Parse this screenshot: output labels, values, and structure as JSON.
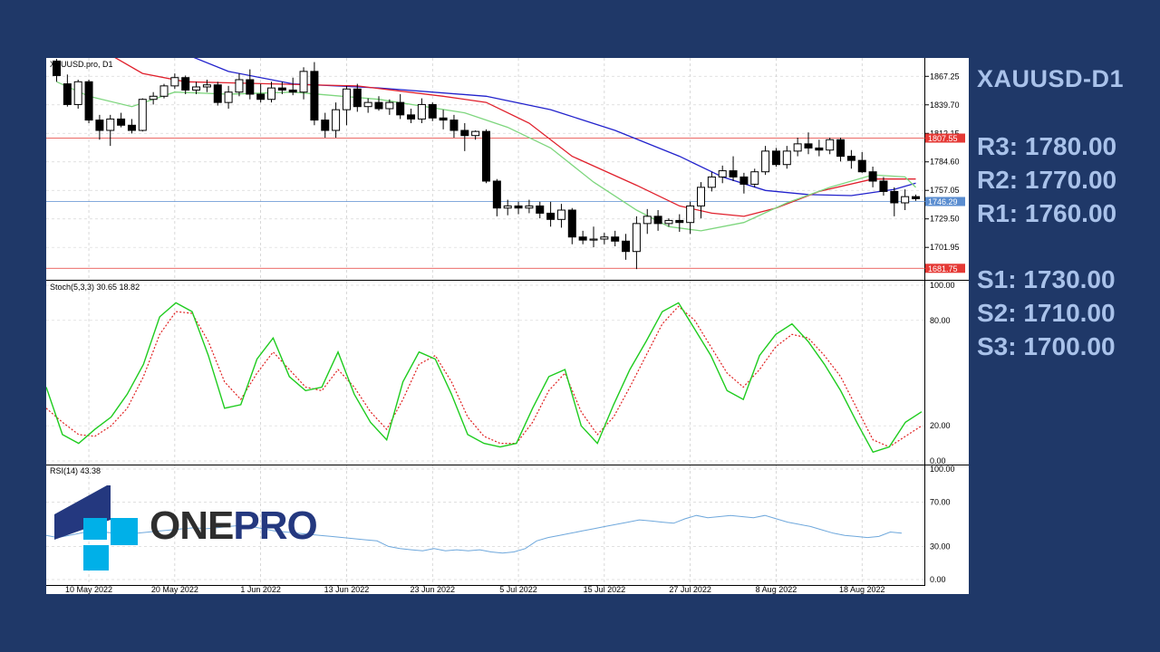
{
  "chart_data": {
    "type": "candlestick",
    "symbol": "XAUUSD.pro, D1",
    "price_axis_ticks": [
      "1867.25",
      "1839.70",
      "1812.15",
      "1784.60",
      "1757.05",
      "1729.50",
      "1701.95"
    ],
    "price_range": [
      1675,
      1885
    ],
    "horizontal_lines": [
      {
        "value": 1807.55,
        "label": "1807.55",
        "color": "#e53935"
      },
      {
        "value": 1746.29,
        "label": "1746.29",
        "color": "#5a8dd0"
      },
      {
        "value": 1681.75,
        "label": "1681.75",
        "color": "#e53935"
      }
    ],
    "x_labels": [
      "10 May 2022",
      "20 May 2022",
      "1 Jun 2022",
      "13 Jun 2022",
      "23 Jun 2022",
      "5 Jul 2022",
      "15 Jul 2022",
      "27 Jul 2022",
      "8 Aug 2022",
      "18 Aug 2022"
    ],
    "x_label_bar_index": [
      3,
      11,
      19,
      27,
      35,
      43,
      51,
      59,
      67,
      75
    ],
    "candles": [
      [
        1882,
        1884,
        1862,
        1868
      ],
      [
        1860,
        1869,
        1838,
        1840
      ],
      [
        1840,
        1864,
        1836,
        1862
      ],
      [
        1862,
        1864,
        1822,
        1825
      ],
      [
        1825,
        1830,
        1806,
        1815
      ],
      [
        1815,
        1830,
        1800,
        1826
      ],
      [
        1826,
        1832,
        1818,
        1820
      ],
      [
        1820,
        1826,
        1812,
        1815
      ],
      [
        1815,
        1846,
        1814,
        1845
      ],
      [
        1845,
        1852,
        1840,
        1848
      ],
      [
        1848,
        1860,
        1846,
        1858
      ],
      [
        1858,
        1870,
        1855,
        1866
      ],
      [
        1866,
        1868,
        1850,
        1854
      ],
      [
        1854,
        1862,
        1850,
        1857
      ],
      [
        1857,
        1864,
        1852,
        1859
      ],
      [
        1859,
        1862,
        1839,
        1842
      ],
      [
        1842,
        1858,
        1836,
        1852
      ],
      [
        1852,
        1870,
        1848,
        1864
      ],
      [
        1864,
        1874,
        1845,
        1850
      ],
      [
        1850,
        1860,
        1842,
        1845
      ],
      [
        1845,
        1862,
        1842,
        1856
      ],
      [
        1856,
        1862,
        1850,
        1854
      ],
      [
        1854,
        1866,
        1849,
        1852
      ],
      [
        1852,
        1876,
        1845,
        1872
      ],
      [
        1872,
        1881,
        1820,
        1825
      ],
      [
        1825,
        1832,
        1808,
        1815
      ],
      [
        1815,
        1842,
        1808,
        1835
      ],
      [
        1835,
        1858,
        1820,
        1855
      ],
      [
        1855,
        1860,
        1833,
        1838
      ],
      [
        1838,
        1846,
        1832,
        1842
      ],
      [
        1842,
        1848,
        1834,
        1836
      ],
      [
        1836,
        1845,
        1830,
        1842
      ],
      [
        1842,
        1850,
        1826,
        1830
      ],
      [
        1830,
        1836,
        1822,
        1826
      ],
      [
        1826,
        1846,
        1822,
        1840
      ],
      [
        1840,
        1842,
        1824,
        1827
      ],
      [
        1827,
        1835,
        1816,
        1825
      ],
      [
        1825,
        1830,
        1808,
        1815
      ],
      [
        1815,
        1822,
        1795,
        1810
      ],
      [
        1810,
        1815,
        1806,
        1814
      ],
      [
        1814,
        1816,
        1764,
        1766
      ],
      [
        1766,
        1768,
        1732,
        1740
      ],
      [
        1740,
        1748,
        1733,
        1742
      ],
      [
        1742,
        1746,
        1734,
        1740
      ],
      [
        1740,
        1748,
        1735,
        1742
      ],
      [
        1742,
        1746,
        1730,
        1735
      ],
      [
        1735,
        1746,
        1722,
        1729
      ],
      [
        1729,
        1744,
        1721,
        1738
      ],
      [
        1738,
        1740,
        1705,
        1712
      ],
      [
        1712,
        1718,
        1705,
        1709
      ],
      [
        1709,
        1722,
        1702,
        1710
      ],
      [
        1710,
        1716,
        1705,
        1712
      ],
      [
        1712,
        1718,
        1703,
        1708
      ],
      [
        1708,
        1715,
        1690,
        1698
      ],
      [
        1698,
        1732,
        1681,
        1725
      ],
      [
        1725,
        1739,
        1715,
        1732
      ],
      [
        1732,
        1738,
        1718,
        1725
      ],
      [
        1725,
        1730,
        1722,
        1728
      ],
      [
        1728,
        1734,
        1717,
        1726
      ],
      [
        1726,
        1746,
        1715,
        1742
      ],
      [
        1742,
        1765,
        1730,
        1760
      ],
      [
        1760,
        1775,
        1756,
        1770
      ],
      [
        1770,
        1781,
        1764,
        1776
      ],
      [
        1776,
        1790,
        1766,
        1770
      ],
      [
        1770,
        1774,
        1754,
        1763
      ],
      [
        1763,
        1778,
        1760,
        1775
      ],
      [
        1775,
        1800,
        1772,
        1795
      ],
      [
        1795,
        1798,
        1780,
        1782
      ],
      [
        1782,
        1800,
        1778,
        1795
      ],
      [
        1795,
        1808,
        1790,
        1802
      ],
      [
        1802,
        1813,
        1792,
        1798
      ],
      [
        1798,
        1806,
        1790,
        1796
      ],
      [
        1796,
        1808,
        1792,
        1806
      ],
      [
        1806,
        1808,
        1785,
        1790
      ],
      [
        1790,
        1796,
        1778,
        1786
      ],
      [
        1786,
        1794,
        1774,
        1775
      ],
      [
        1775,
        1780,
        1760,
        1766
      ],
      [
        1766,
        1770,
        1752,
        1756
      ],
      [
        1756,
        1760,
        1732,
        1745
      ],
      [
        1745,
        1758,
        1738,
        1751
      ],
      [
        1751,
        1753,
        1747,
        1749
      ]
    ],
    "moving_averages": [
      {
        "color": "#22c",
        "points": [
          [
            11,
            1893
          ],
          [
            16,
            1872
          ],
          [
            22,
            1860
          ],
          [
            30,
            1856
          ],
          [
            40,
            1848
          ],
          [
            46,
            1835
          ],
          [
            52,
            1815
          ],
          [
            58,
            1790
          ],
          [
            62,
            1770
          ],
          [
            66,
            1757
          ],
          [
            70,
            1753
          ],
          [
            74,
            1752
          ],
          [
            78,
            1758
          ],
          [
            80,
            1764
          ]
        ]
      },
      {
        "color": "#e0202c",
        "points": [
          [
            5,
            1888
          ],
          [
            8,
            1870
          ],
          [
            12,
            1862
          ],
          [
            20,
            1860
          ],
          [
            28,
            1858
          ],
          [
            36,
            1848
          ],
          [
            40,
            1842
          ],
          [
            44,
            1822
          ],
          [
            48,
            1790
          ],
          [
            54,
            1762
          ],
          [
            58,
            1742
          ],
          [
            61,
            1735
          ],
          [
            64,
            1732
          ],
          [
            67,
            1740
          ],
          [
            71,
            1756
          ],
          [
            76,
            1768
          ],
          [
            80,
            1768
          ]
        ]
      },
      {
        "color": "#7ed67e",
        "points": [
          [
            0,
            1862
          ],
          [
            3,
            1848
          ],
          [
            7,
            1838
          ],
          [
            11,
            1852
          ],
          [
            16,
            1850
          ],
          [
            22,
            1852
          ],
          [
            30,
            1845
          ],
          [
            38,
            1832
          ],
          [
            42,
            1818
          ],
          [
            46,
            1798
          ],
          [
            50,
            1765
          ],
          [
            54,
            1738
          ],
          [
            57,
            1722
          ],
          [
            60,
            1718
          ],
          [
            64,
            1726
          ],
          [
            68,
            1745
          ],
          [
            72,
            1760
          ],
          [
            76,
            1772
          ],
          [
            79,
            1770
          ],
          [
            80,
            1760
          ]
        ]
      }
    ],
    "stochastic": {
      "label": "Stoch(5,3,3) 30.65 18.82",
      "ticks": [
        "100.00",
        "80.00",
        "20.00",
        "0.00"
      ],
      "k_color": "#1fcc1f",
      "d_color": "#e02020",
      "k": [
        42,
        15,
        10,
        18,
        25,
        38,
        55,
        82,
        90,
        85,
        60,
        30,
        32,
        58,
        70,
        48,
        40,
        42,
        62,
        38,
        22,
        12,
        45,
        62,
        58,
        38,
        15,
        10,
        8,
        10,
        30,
        48,
        52,
        20,
        10,
        32,
        52,
        68,
        85,
        90,
        75,
        60,
        40,
        35,
        60,
        72,
        78,
        68,
        55,
        40,
        22,
        5,
        8,
        22,
        28
      ],
      "d": [
        30,
        22,
        15,
        14,
        20,
        30,
        48,
        72,
        85,
        84,
        68,
        45,
        35,
        50,
        62,
        52,
        42,
        40,
        52,
        42,
        28,
        18,
        35,
        55,
        60,
        45,
        25,
        14,
        10,
        10,
        22,
        40,
        50,
        28,
        15,
        25,
        42,
        60,
        78,
        88,
        80,
        65,
        50,
        42,
        52,
        65,
        72,
        70,
        60,
        48,
        30,
        12,
        8,
        14,
        20
      ]
    },
    "rsi": {
      "label": "RSI(14) 43.38",
      "ticks": [
        "100.00",
        "70.00",
        "30.00",
        "0.00"
      ],
      "color": "#6fa8dc",
      "values": [
        40,
        38,
        40,
        42,
        44,
        43,
        42,
        41,
        42,
        43,
        44,
        45,
        46,
        47,
        46,
        47,
        48,
        49,
        48,
        46,
        44,
        43,
        42,
        41,
        40,
        39,
        38,
        37,
        36,
        35,
        30,
        28,
        27,
        26,
        28,
        26,
        27,
        26,
        27,
        25,
        24,
        25,
        28,
        35,
        38,
        40,
        42,
        44,
        46,
        48,
        50,
        52,
        54,
        53,
        52,
        51,
        55,
        58,
        56,
        57,
        58,
        57,
        56,
        58,
        55,
        52,
        50,
        48,
        45,
        42,
        40,
        39,
        38,
        39,
        43,
        42
      ]
    }
  },
  "levels": {
    "symbol": "XAUUSD-D1",
    "r3": "R3: 1780.00",
    "r2": "R2: 1770.00",
    "r1": "R1: 1760.00",
    "s1": "S1: 1730.00",
    "s2": "S2: 1710.00",
    "s3": "S3: 1700.00"
  },
  "logo": {
    "one": "ONE",
    "pro": "PRO",
    "color_blue": "#24387f",
    "color_cyan": "#00b0e8"
  }
}
